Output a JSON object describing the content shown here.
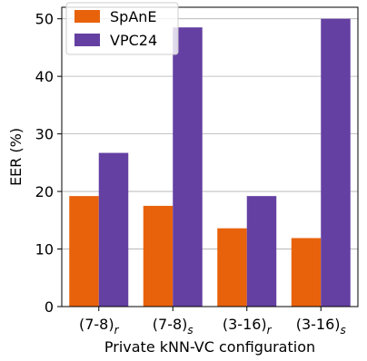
{
  "chart_data": {
    "type": "bar",
    "categories": [
      {
        "base": "(7-8)",
        "sub": "r"
      },
      {
        "base": "(7-8)",
        "sub": "s"
      },
      {
        "base": "(3-16)",
        "sub": "r"
      },
      {
        "base": "(3-16)",
        "sub": "s"
      }
    ],
    "series": [
      {
        "name": "SpAnE",
        "color": "#e8620c",
        "values": [
          19.2,
          17.5,
          13.6,
          11.9
        ]
      },
      {
        "name": "VPC24",
        "color": "#6440a2",
        "values": [
          26.7,
          48.5,
          19.2,
          50.0
        ]
      }
    ],
    "xlabel": "Private kNN-VC configuration",
    "ylabel": "EER (%)",
    "ylim": [
      0,
      52
    ],
    "yticks": [
      0,
      10,
      20,
      30,
      40,
      50
    ],
    "grid": "y",
    "legend_position": "top-left"
  }
}
